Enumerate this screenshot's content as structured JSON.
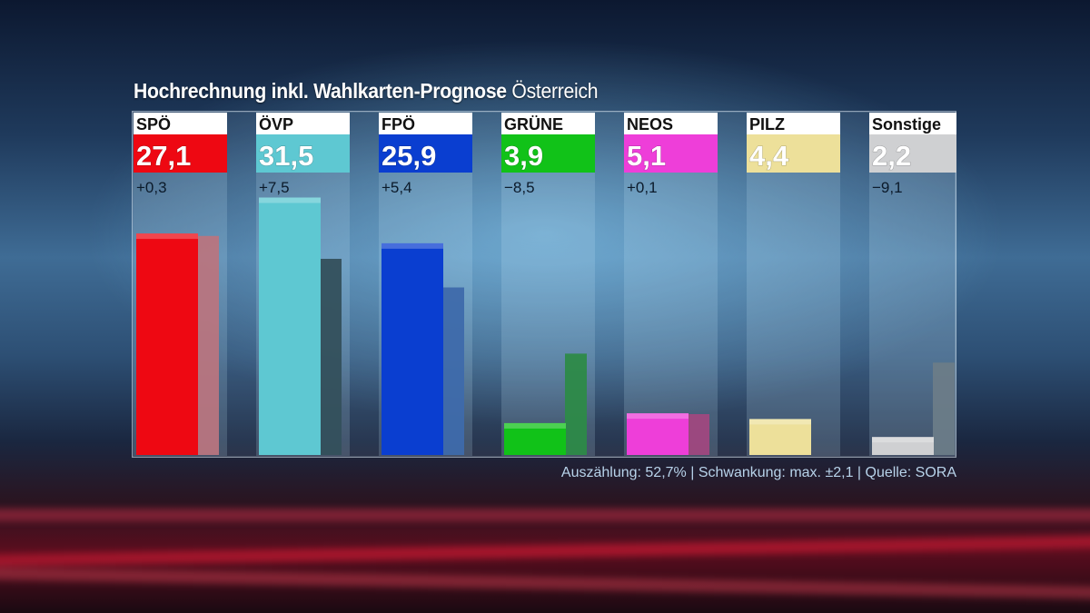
{
  "title": {
    "main": "Hochrechnung inkl. Wahlkarten-Prognose",
    "region": "Österreich"
  },
  "footer": "Auszählung: 52,7% | Schwankung: max. ±2,1 | Quelle: SORA",
  "chart_data": {
    "type": "bar",
    "categories": [
      "SPÖ",
      "ÖVP",
      "FPÖ",
      "GRÜNE",
      "NEOS",
      "PILZ",
      "Sonstige"
    ],
    "series": [
      {
        "values": [
          27.1,
          31.5,
          25.9,
          3.9,
          5.1,
          4.4,
          2.2
        ]
      },
      {
        "values": [
          26.8,
          24.0,
          20.5,
          12.4,
          5.0,
          null,
          11.3
        ]
      }
    ],
    "value_labels": [
      "27,1",
      "31,5",
      "25,9",
      "3,9",
      "5,1",
      "4,4",
      "2,2"
    ],
    "change_labels": [
      "+0,3",
      "+7,5",
      "+5,4",
      "−8,5",
      "+0,1",
      "",
      "−9,1"
    ],
    "colors": {
      "current": [
        "#ee0812",
        "#5ec8d2",
        "#0a3ed0",
        "#11c218",
        "#ee3ed9",
        "#ede09a",
        "#cfd0d2"
      ],
      "previous": [
        "#b87580",
        "#34505c",
        "#3e6aab",
        "#2d8a48",
        "#a0487f",
        "#8c8c8c",
        "#6c7c88"
      ]
    },
    "ylim": [
      0,
      40
    ],
    "grid": false,
    "legend": "none"
  }
}
